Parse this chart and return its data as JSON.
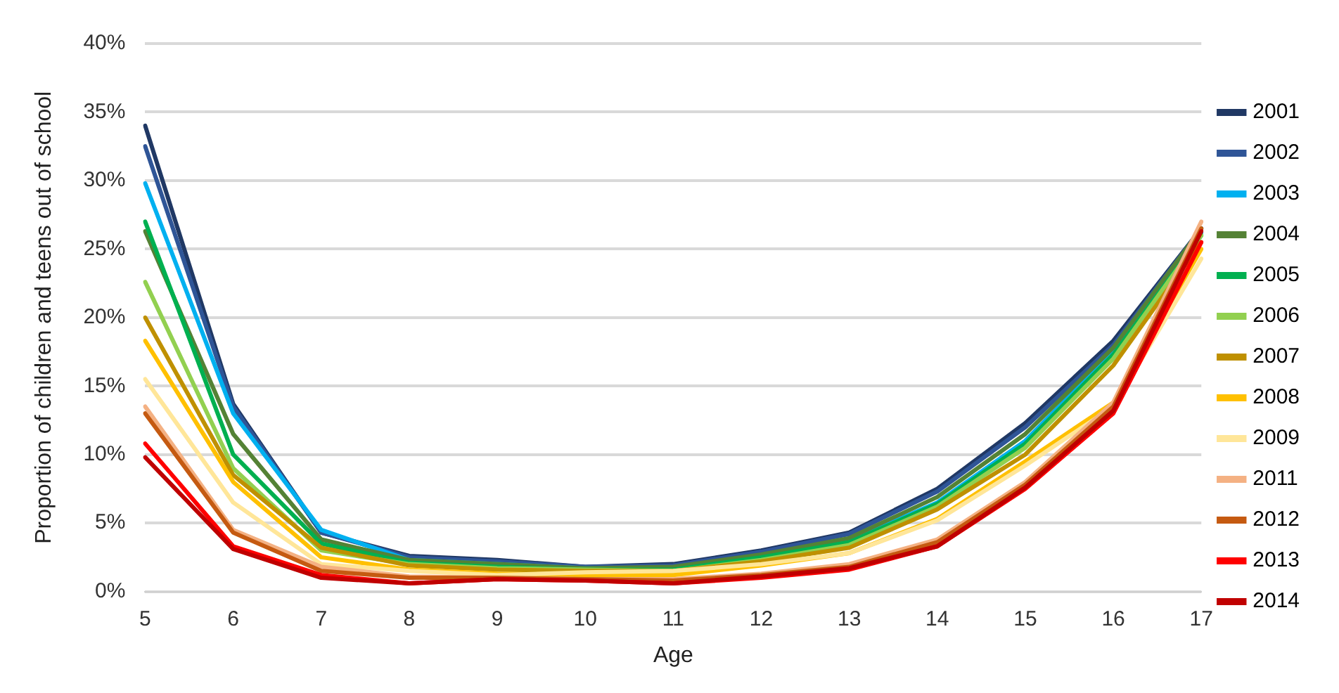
{
  "chart_data": {
    "type": "line",
    "xlabel": "Age",
    "ylabel": "Proportion of children and teens out of school",
    "categories": [
      "5",
      "6",
      "7",
      "8",
      "9",
      "10",
      "11",
      "12",
      "13",
      "14",
      "15",
      "16",
      "17"
    ],
    "ylim": [
      0,
      40
    ],
    "yticks": [
      {
        "value": 0,
        "label": "0%"
      },
      {
        "value": 5,
        "label": "5%"
      },
      {
        "value": 10,
        "label": "10%"
      },
      {
        "value": 15,
        "label": "15%"
      },
      {
        "value": 20,
        "label": "20%"
      },
      {
        "value": 25,
        "label": "25%"
      },
      {
        "value": 30,
        "label": "30%"
      },
      {
        "value": 35,
        "label": "35%"
      },
      {
        "value": 40,
        "label": "40%"
      }
    ],
    "grid": "y",
    "legend": "right",
    "marker": "none",
    "line_style": "solid",
    "series": [
      {
        "name": "2001",
        "color": "#203864",
        "values": [
          34,
          13.7,
          4.3,
          2.6,
          2.3,
          1.8,
          2.0,
          3.0,
          4.3,
          7.5,
          12.3,
          18.3,
          26.5
        ]
      },
      {
        "name": "2002",
        "color": "#2f5597",
        "values": [
          32.5,
          13.5,
          4.3,
          2.5,
          2.2,
          1.8,
          1.9,
          2.9,
          4.2,
          7.3,
          12.0,
          18.0,
          26.5
        ]
      },
      {
        "name": "2003",
        "color": "#00b0f0",
        "values": [
          29.8,
          13,
          4.5,
          2.3,
          2.0,
          1.7,
          1.7,
          2.6,
          3.7,
          6.5,
          11.0,
          17.5,
          26.2
        ]
      },
      {
        "name": "2004",
        "color": "#548235",
        "values": [
          26.3,
          11.5,
          3.8,
          2.3,
          2.0,
          1.7,
          1.8,
          2.7,
          3.9,
          6.9,
          11.5,
          17.8,
          26.5
        ]
      },
      {
        "name": "2005",
        "color": "#00b050",
        "values": [
          27,
          10,
          3.5,
          2.1,
          1.8,
          1.6,
          1.6,
          2.5,
          3.6,
          6.4,
          10.8,
          17.3,
          26.0
        ]
      },
      {
        "name": "2006",
        "color": "#92d050",
        "values": [
          22.6,
          9,
          3,
          2.0,
          1.7,
          1.6,
          1.5,
          2.3,
          3.4,
          6.2,
          10.5,
          17.0,
          26.0
        ]
      },
      {
        "name": "2007",
        "color": "#bf9000",
        "values": [
          20,
          8.5,
          3.2,
          1.9,
          1.6,
          1.5,
          1.5,
          2.2,
          3.2,
          6.0,
          10.0,
          16.5,
          25.5
        ]
      },
      {
        "name": "2008",
        "color": "#ffc000",
        "values": [
          18.3,
          8,
          2.5,
          1.6,
          1.3,
          1.2,
          1.2,
          1.9,
          2.8,
          5.3,
          9.5,
          13.8,
          25.0
        ]
      },
      {
        "name": "2009",
        "color": "#ffe699",
        "values": [
          15.5,
          6.5,
          2,
          1.5,
          1.2,
          1.4,
          1.5,
          2.0,
          2.8,
          5.2,
          9.2,
          13.5,
          24.3
        ]
      },
      {
        "name": "2011",
        "color": "#f4b183",
        "values": [
          13.5,
          4.5,
          1.8,
          1.1,
          1.0,
          0.9,
          0.9,
          1.3,
          2.0,
          3.8,
          8.0,
          13.8,
          27.0
        ]
      },
      {
        "name": "2012",
        "color": "#c55a11",
        "values": [
          13,
          4.3,
          1.5,
          1.0,
          1.0,
          0.9,
          0.8,
          1.2,
          1.8,
          3.6,
          7.8,
          13.5,
          26.5
        ]
      },
      {
        "name": "2013",
        "color": "#ff0000",
        "values": [
          10.8,
          3.3,
          1.2,
          0.6,
          0.9,
          0.8,
          0.6,
          1.0,
          1.6,
          3.3,
          7.5,
          13.0,
          25.5
        ]
      },
      {
        "name": "2014",
        "color": "#c00000",
        "values": [
          9.8,
          3.1,
          1.0,
          0.6,
          0.9,
          0.8,
          0.6,
          1.1,
          1.7,
          3.3,
          7.6,
          13.2,
          26.3
        ]
      }
    ]
  }
}
